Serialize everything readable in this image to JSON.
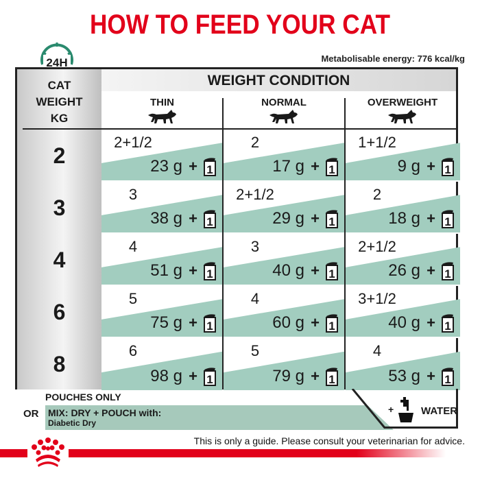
{
  "title": "HOW TO FEED YOUR CAT",
  "clock_label": "24H",
  "energy": "Metabolisable energy: 776 kcal/kg",
  "header": {
    "cat_weight": [
      "CAT",
      "WEIGHT",
      "KG"
    ],
    "weight_condition": "WEIGHT CONDITION",
    "columns": [
      "THIN",
      "NORMAL",
      "OVERWEIGHT"
    ]
  },
  "rows": [
    {
      "kg": "2",
      "cells": [
        {
          "portion": "2+1/2",
          "grams": "23 g"
        },
        {
          "portion": "2",
          "grams": "17 g"
        },
        {
          "portion": "1+1/2",
          "grams": "9 g"
        }
      ]
    },
    {
      "kg": "3",
      "cells": [
        {
          "portion": "3",
          "grams": "38 g"
        },
        {
          "portion": "2+1/2",
          "grams": "29 g"
        },
        {
          "portion": "2",
          "grams": "18 g"
        }
      ]
    },
    {
      "kg": "4",
      "cells": [
        {
          "portion": "4",
          "grams": "51 g"
        },
        {
          "portion": "3",
          "grams": "40 g"
        },
        {
          "portion": "2+1/2",
          "grams": "26 g"
        }
      ]
    },
    {
      "kg": "6",
      "cells": [
        {
          "portion": "5",
          "grams": "75 g"
        },
        {
          "portion": "4",
          "grams": "60 g"
        },
        {
          "portion": "3+1/2",
          "grams": "40 g"
        }
      ]
    },
    {
      "kg": "8",
      "cells": [
        {
          "portion": "6",
          "grams": "98 g"
        },
        {
          "portion": "5",
          "grams": "79 g"
        },
        {
          "portion": "4",
          "grams": "53 g"
        }
      ]
    }
  ],
  "plus": "+",
  "pouch_count": "1",
  "footer": {
    "pouches_only": "POUCHES ONLY",
    "or": "OR",
    "mix": "MIX: DRY + POUCH with:",
    "mix_product": "Diabetic Dry",
    "water_plus": "+",
    "water": "WATER",
    "guide": "This is only a guide. Please consult your veterinarian for advice."
  },
  "colors": {
    "brand_red": "#e2001a",
    "teal": "#a2cdbf",
    "clock": "#2a8a6e"
  }
}
